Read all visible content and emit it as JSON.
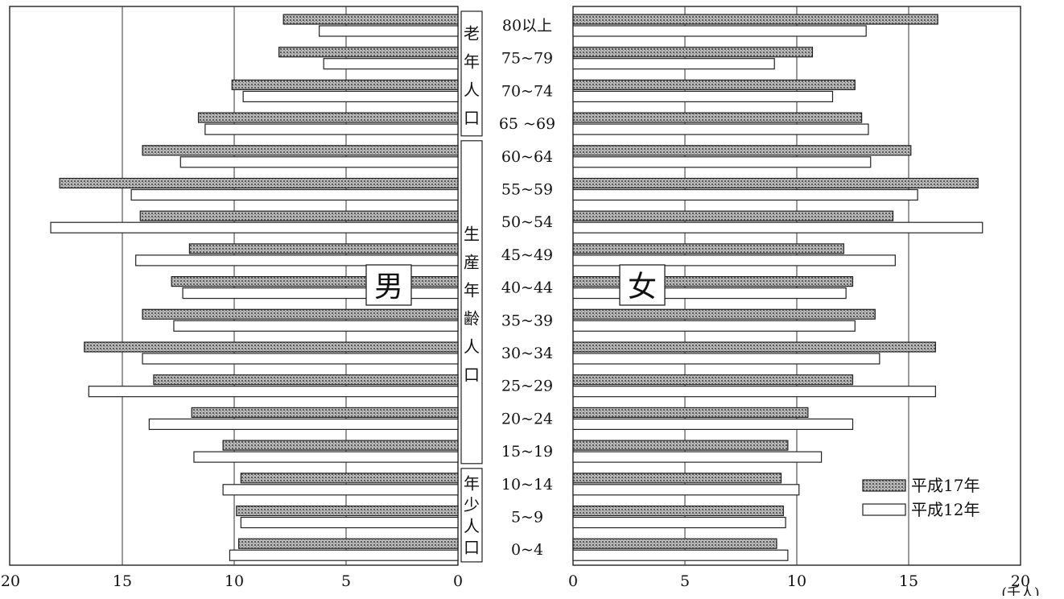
{
  "chart_data": {
    "type": "bar",
    "orientation": "horizontal",
    "layout": "population-pyramid",
    "categories": [
      "80以上",
      "75~79",
      "70~74",
      "65 ~69",
      "60~64",
      "55~59",
      "50~54",
      "45~49",
      "40~44",
      "35~39",
      "30~34",
      "25~29",
      "20~24",
      "15~19",
      "10~14",
      "5~9",
      "0~4"
    ],
    "panels": [
      {
        "key": "male",
        "label": "男",
        "direction": "left",
        "xlim": [
          0,
          20
        ],
        "xticks": [
          "0",
          "5",
          "10",
          "15",
          "20"
        ],
        "series": [
          {
            "name": "平成17年",
            "values": [
              7.8,
              8.0,
              10.1,
              11.6,
              14.1,
              17.8,
              14.2,
              12.0,
              12.8,
              14.1,
              16.7,
              13.6,
              11.9,
              10.5,
              9.7,
              9.9,
              9.8
            ]
          },
          {
            "name": "平成12年",
            "values": [
              6.2,
              6.0,
              9.6,
              11.3,
              12.4,
              14.6,
              18.2,
              14.4,
              12.3,
              12.7,
              14.1,
              16.5,
              13.8,
              11.8,
              10.5,
              9.7,
              10.2
            ]
          }
        ]
      },
      {
        "key": "female",
        "label": "女",
        "direction": "right",
        "xlim": [
          0,
          20
        ],
        "xticks": [
          "0",
          "5",
          "10",
          "15",
          "20"
        ],
        "series": [
          {
            "name": "平成17年",
            "values": [
              16.3,
              10.7,
              12.6,
              12.9,
              15.1,
              18.1,
              14.3,
              12.1,
              12.5,
              13.5,
              16.2,
              12.5,
              10.5,
              9.6,
              9.3,
              9.4,
              9.1
            ]
          },
          {
            "name": "平成12年",
            "values": [
              13.1,
              9.0,
              11.6,
              13.2,
              13.3,
              15.4,
              18.3,
              14.4,
              12.2,
              12.6,
              13.7,
              16.2,
              12.5,
              11.1,
              10.1,
              9.5,
              9.6
            ]
          }
        ]
      }
    ],
    "groups": [
      {
        "label": "老年人口",
        "chars": [
          "老",
          "年",
          "人",
          "口"
        ],
        "from": "80以上",
        "to": "65 ~69"
      },
      {
        "label": "生産年齢人口",
        "chars": [
          "生",
          "産",
          "年",
          "齢",
          "人",
          "口"
        ],
        "from": "60~64",
        "to": "15~19"
      },
      {
        "label": "年少人口",
        "chars": [
          "年",
          "少",
          "人",
          "口"
        ],
        "from": "10~14",
        "to": "0~4"
      }
    ],
    "legend": {
      "position": "bottom-right",
      "items": [
        "平成17年",
        "平成12年"
      ]
    },
    "unit": "(千人)",
    "grid": true
  }
}
